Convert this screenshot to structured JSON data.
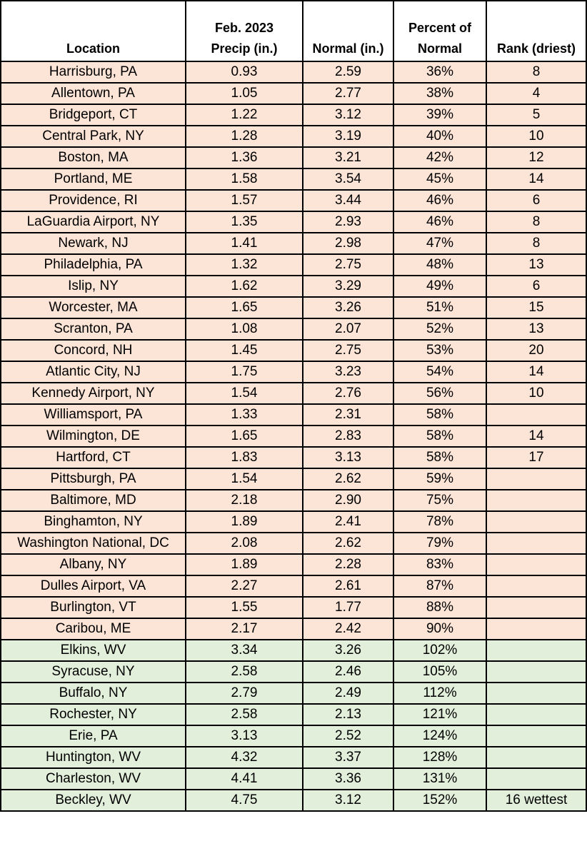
{
  "styles": {
    "dry_row_color": "#fce4d6",
    "wet_row_color": "#e2efda",
    "header_bg": "#ffffff",
    "border_color": "#000000",
    "text_color": "#000000"
  },
  "chart_data": {
    "type": "table",
    "columns": [
      "Location",
      "Feb. 2023\nPrecip (in.)",
      "Normal (in.)",
      "Percent of\nNormal",
      "Rank (driest)"
    ],
    "legend_note": "rows under 100% of normal shaded peach (dry), rows at or above 100% shaded green (wet)",
    "rows": [
      {
        "location": "Harrisburg, PA",
        "precip": "0.93",
        "normal": "2.59",
        "percent": "36%",
        "rank": "8"
      },
      {
        "location": "Allentown, PA",
        "precip": "1.05",
        "normal": "2.77",
        "percent": "38%",
        "rank": "4"
      },
      {
        "location": "Bridgeport, CT",
        "precip": "1.22",
        "normal": "3.12",
        "percent": "39%",
        "rank": "5"
      },
      {
        "location": "Central Park, NY",
        "precip": "1.28",
        "normal": "3.19",
        "percent": "40%",
        "rank": "10"
      },
      {
        "location": "Boston, MA",
        "precip": "1.36",
        "normal": "3.21",
        "percent": "42%",
        "rank": "12"
      },
      {
        "location": "Portland, ME",
        "precip": "1.58",
        "normal": "3.54",
        "percent": "45%",
        "rank": "14"
      },
      {
        "location": "Providence, RI",
        "precip": "1.57",
        "normal": "3.44",
        "percent": "46%",
        "rank": "6"
      },
      {
        "location": "LaGuardia Airport, NY",
        "precip": "1.35",
        "normal": "2.93",
        "percent": "46%",
        "rank": "8"
      },
      {
        "location": "Newark, NJ",
        "precip": "1.41",
        "normal": "2.98",
        "percent": "47%",
        "rank": "8"
      },
      {
        "location": "Philadelphia, PA",
        "precip": "1.32",
        "normal": "2.75",
        "percent": "48%",
        "rank": "13"
      },
      {
        "location": "Islip, NY",
        "precip": "1.62",
        "normal": "3.29",
        "percent": "49%",
        "rank": "6"
      },
      {
        "location": "Worcester, MA",
        "precip": "1.65",
        "normal": "3.26",
        "percent": "51%",
        "rank": "15"
      },
      {
        "location": "Scranton, PA",
        "precip": "1.08",
        "normal": "2.07",
        "percent": "52%",
        "rank": "13"
      },
      {
        "location": "Concord, NH",
        "precip": "1.45",
        "normal": "2.75",
        "percent": "53%",
        "rank": "20"
      },
      {
        "location": "Atlantic City, NJ",
        "precip": "1.75",
        "normal": "3.23",
        "percent": "54%",
        "rank": "14"
      },
      {
        "location": "Kennedy Airport, NY",
        "precip": "1.54",
        "normal": "2.76",
        "percent": "56%",
        "rank": "10"
      },
      {
        "location": "Williamsport, PA",
        "precip": "1.33",
        "normal": "2.31",
        "percent": "58%",
        "rank": ""
      },
      {
        "location": "Wilmington, DE",
        "precip": "1.65",
        "normal": "2.83",
        "percent": "58%",
        "rank": "14"
      },
      {
        "location": "Hartford, CT",
        "precip": "1.83",
        "normal": "3.13",
        "percent": "58%",
        "rank": "17"
      },
      {
        "location": "Pittsburgh, PA",
        "precip": "1.54",
        "normal": "2.62",
        "percent": "59%",
        "rank": ""
      },
      {
        "location": "Baltimore, MD",
        "precip": "2.18",
        "normal": "2.90",
        "percent": "75%",
        "rank": ""
      },
      {
        "location": "Binghamton, NY",
        "precip": "1.89",
        "normal": "2.41",
        "percent": "78%",
        "rank": ""
      },
      {
        "location": "Washington National, DC",
        "precip": "2.08",
        "normal": "2.62",
        "percent": "79%",
        "rank": ""
      },
      {
        "location": "Albany, NY",
        "precip": "1.89",
        "normal": "2.28",
        "percent": "83%",
        "rank": ""
      },
      {
        "location": "Dulles Airport, VA",
        "precip": "2.27",
        "normal": "2.61",
        "percent": "87%",
        "rank": ""
      },
      {
        "location": "Burlington, VT",
        "precip": "1.55",
        "normal": "1.77",
        "percent": "88%",
        "rank": ""
      },
      {
        "location": "Caribou, ME",
        "precip": "2.17",
        "normal": "2.42",
        "percent": "90%",
        "rank": ""
      },
      {
        "location": "Elkins, WV",
        "precip": "3.34",
        "normal": "3.26",
        "percent": "102%",
        "rank": ""
      },
      {
        "location": "Syracuse, NY",
        "precip": "2.58",
        "normal": "2.46",
        "percent": "105%",
        "rank": ""
      },
      {
        "location": "Buffalo, NY",
        "precip": "2.79",
        "normal": "2.49",
        "percent": "112%",
        "rank": ""
      },
      {
        "location": "Rochester, NY",
        "precip": "2.58",
        "normal": "2.13",
        "percent": "121%",
        "rank": ""
      },
      {
        "location": "Erie, PA",
        "precip": "3.13",
        "normal": "2.52",
        "percent": "124%",
        "rank": ""
      },
      {
        "location": "Huntington, WV",
        "precip": "4.32",
        "normal": "3.37",
        "percent": "128%",
        "rank": ""
      },
      {
        "location": "Charleston, WV",
        "precip": "4.41",
        "normal": "3.36",
        "percent": "131%",
        "rank": ""
      },
      {
        "location": "Beckley, WV",
        "precip": "4.75",
        "normal": "3.12",
        "percent": "152%",
        "rank": "16 wettest"
      }
    ]
  }
}
